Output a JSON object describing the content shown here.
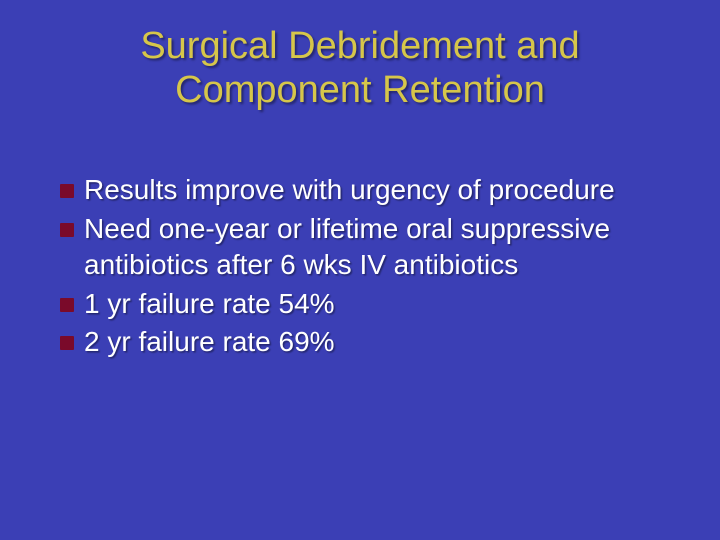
{
  "slide": {
    "background_color": "#3b3fb5",
    "title": {
      "line1": "Surgical Debridement and",
      "line2": "Component Retention",
      "color": "#d6c64a"
    },
    "bullets": [
      {
        "text": "Results improve with urgency of procedure"
      },
      {
        "text": "Need one-year or lifetime oral suppressive antibiotics after 6 wks IV antibiotics"
      },
      {
        "text": "1 yr failure rate 54%"
      },
      {
        "text": "2 yr failure rate 69%"
      }
    ],
    "bullet_text_color": "#ffffff",
    "bullet_marker_color": "#7a0a2a"
  }
}
